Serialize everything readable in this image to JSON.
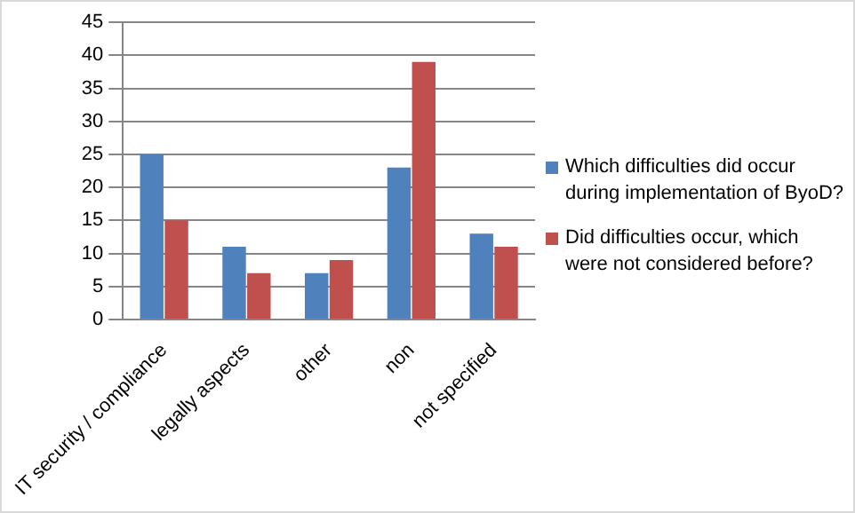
{
  "chart_data": {
    "type": "bar",
    "categories": [
      "IT security / compliance",
      "legally aspects",
      "other",
      "non",
      "not specified"
    ],
    "series": [
      {
        "name": "Which difficulties did occur during implementation of ByoD?",
        "color": "#4f81bd",
        "values": [
          25,
          11,
          7,
          23,
          13
        ]
      },
      {
        "name": "Did difficulties occur, which were not considered before?",
        "color": "#c0504d",
        "values": [
          15,
          7,
          9,
          39,
          11
        ]
      }
    ],
    "ylim": [
      0,
      45
    ],
    "yticks": [
      0,
      5,
      10,
      15,
      20,
      25,
      30,
      35,
      40,
      45
    ],
    "grid": "y",
    "legend": "right"
  }
}
